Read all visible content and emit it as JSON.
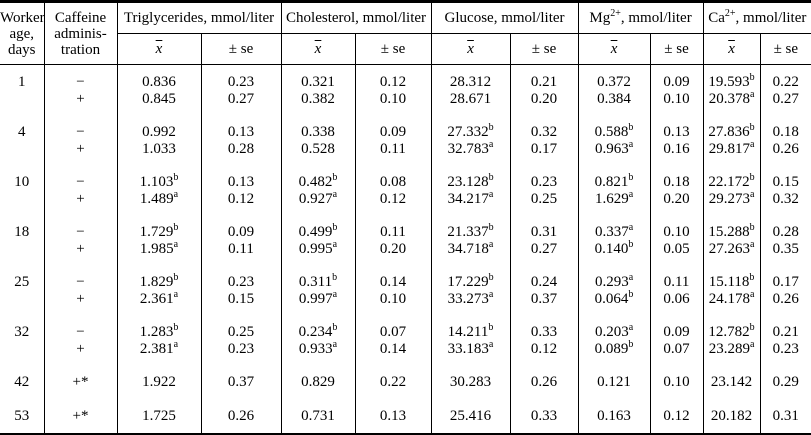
{
  "table": {
    "worker_age_header": "Worker\nage,\ndays",
    "caffeine_header": "Caffeine\nadminis-\ntration",
    "groups": [
      {
        "label": "Triglycerides, mmol/liter"
      },
      {
        "label": "Cholesterol, mmol/liter"
      },
      {
        "label": "Glucose, mmol/liter"
      },
      {
        "label": "Mg^{2+}, mmol/liter"
      },
      {
        "label": "Ca^{2+}, mmol/liter"
      }
    ],
    "mean_header": "x",
    "se_header": "± se",
    "rows": [
      {
        "age": "1",
        "lines": [
          {
            "caffeine": "−",
            "cells": [
              "0.836",
              "0.23",
              "0.321",
              "0.12",
              "28.312",
              "0.21",
              "0.372",
              "0.09",
              "19.593^{b}",
              "0.22"
            ]
          },
          {
            "caffeine": "+",
            "cells": [
              "0.845",
              "0.27",
              "0.382",
              "0.10",
              "28.671",
              "0.20",
              "0.384",
              "0.10",
              "20.378^{a}",
              "0.27"
            ]
          }
        ]
      },
      {
        "age": "4",
        "lines": [
          {
            "caffeine": "−",
            "cells": [
              "0.992",
              "0.13",
              "0.338",
              "0.09",
              "27.332^{b}",
              "0.32",
              "0.588^{b}",
              "0.13",
              "27.836^{b}",
              "0.18"
            ]
          },
          {
            "caffeine": "+",
            "cells": [
              "1.033",
              "0.28",
              "0.528",
              "0.11",
              "32.783^{a}",
              "0.17",
              "0.963^{a}",
              "0.16",
              "29.817^{a}",
              "0.26"
            ]
          }
        ]
      },
      {
        "age": "10",
        "lines": [
          {
            "caffeine": "−",
            "cells": [
              "1.103^{b}",
              "0.13",
              "0.482^{b}",
              "0.08",
              "23.128^{b}",
              "0.23",
              "0.821^{b}",
              "0.18",
              "22.172^{b}",
              "0.15"
            ]
          },
          {
            "caffeine": "+",
            "cells": [
              "1.489^{a}",
              "0.12",
              "0.927^{a}",
              "0.12",
              "34.217^{a}",
              "0.25",
              "1.629^{a}",
              "0.20",
              "29.273^{a}",
              "0.32"
            ]
          }
        ]
      },
      {
        "age": "18",
        "lines": [
          {
            "caffeine": "−",
            "cells": [
              "1.729^{b}",
              "0.09",
              "0.499^{b}",
              "0.11",
              "21.337^{b}",
              "0.31",
              "0.337^{a}",
              "0.10",
              "15.288^{b}",
              "0.28"
            ]
          },
          {
            "caffeine": "+",
            "cells": [
              "1.985^{a}",
              "0.11",
              "0.995^{a}",
              "0.20",
              "34.718^{a}",
              "0.27",
              "0.140^{b}",
              "0.05",
              "27.263^{a}",
              "0.35"
            ]
          }
        ]
      },
      {
        "age": "25",
        "lines": [
          {
            "caffeine": "−",
            "cells": [
              "1.829^{b}",
              "0.23",
              "0.311^{b}",
              "0.14",
              "17.229^{b}",
              "0.24",
              "0.293^{a}",
              "0.11",
              "15.118^{b}",
              "0.17"
            ]
          },
          {
            "caffeine": "+",
            "cells": [
              "2.361^{a}",
              "0.15",
              "0.997^{a}",
              "0.10",
              "33.273^{a}",
              "0.37",
              "0.064^{b}",
              "0.06",
              "24.178^{a}",
              "0.26"
            ]
          }
        ]
      },
      {
        "age": "32",
        "lines": [
          {
            "caffeine": "−",
            "cells": [
              "1.283^{b}",
              "0.25",
              "0.234^{b}",
              "0.07",
              "14.211^{b}",
              "0.33",
              "0.203^{a}",
              "0.09",
              "12.782^{b}",
              "0.21"
            ]
          },
          {
            "caffeine": "+",
            "cells": [
              "2.381^{a}",
              "0.23",
              "0.933^{a}",
              "0.14",
              "33.183^{a}",
              "0.12",
              "0.089^{b}",
              "0.07",
              "23.289^{a}",
              "0.23"
            ]
          }
        ]
      },
      {
        "age": "42",
        "lines": [
          {
            "caffeine": "+*",
            "cells": [
              "1.922",
              "0.37",
              "0.829",
              "0.22",
              "30.283",
              "0.26",
              "0.121",
              "0.10",
              "23.142",
              "0.29"
            ]
          }
        ]
      },
      {
        "age": "53",
        "lines": [
          {
            "caffeine": "+*",
            "cells": [
              "1.725",
              "0.26",
              "0.731",
              "0.13",
              "25.416",
              "0.33",
              "0.163",
              "0.12",
              "20.182",
              "0.31"
            ]
          }
        ]
      }
    ]
  }
}
